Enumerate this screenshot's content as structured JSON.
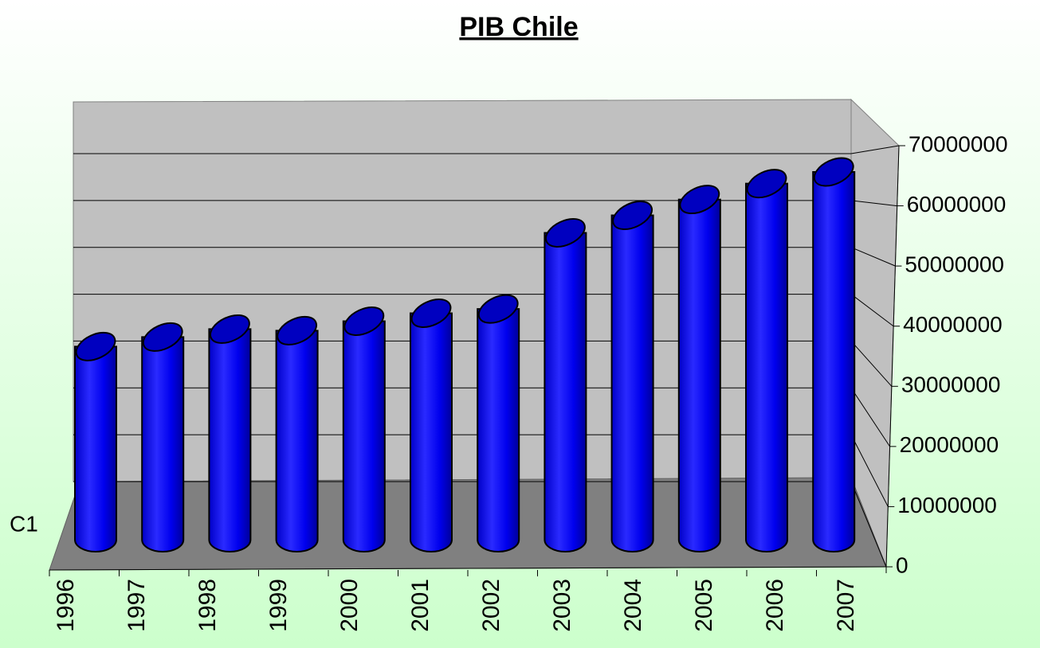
{
  "chart_data": {
    "type": "bar3d",
    "title": "PIB Chile",
    "categories": [
      "1996",
      "1997",
      "1998",
      "1999",
      "2000",
      "2001",
      "2002",
      "2003",
      "2004",
      "2005",
      "2006",
      "2007"
    ],
    "series": [
      {
        "name": "C1",
        "color": "#0000ff",
        "values": [
          36500000,
          38300000,
          39800000,
          39500000,
          41300000,
          42800000,
          43600000,
          58000000,
          61300000,
          64300000,
          67300000,
          69500000
        ]
      }
    ],
    "ylim": [
      0,
      70000000
    ],
    "yticks": [
      0,
      10000000,
      20000000,
      30000000,
      40000000,
      50000000,
      60000000,
      70000000
    ],
    "grid": true
  }
}
